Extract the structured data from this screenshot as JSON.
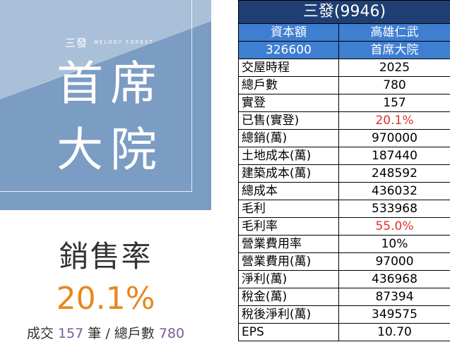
{
  "cover": {
    "brand": "三發",
    "brand_sub": "MELODY FOREST",
    "line1": "首席",
    "line2": "大院"
  },
  "sales": {
    "label": "銷售率",
    "percent": "20.1%",
    "sold_prefix": "成交",
    "sold": "157",
    "sold_unit": "筆",
    "sep": "/",
    "total_label": "總戶數",
    "total": "780"
  },
  "table": {
    "title": "三發(9946)",
    "header": [
      [
        "資本額",
        "高雄仁武"
      ],
      [
        "326600",
        "首席大院"
      ]
    ],
    "rows": [
      {
        "label": "交屋時程",
        "value": "2025"
      },
      {
        "label": "總戶數",
        "value": "780"
      },
      {
        "label": "實登",
        "value": "157"
      },
      {
        "label": "已售(實登)",
        "value": "20.1%"
      },
      {
        "label": "總銷(萬)",
        "value": "970000"
      },
      {
        "label": "土地成本(萬)",
        "value": "187440"
      },
      {
        "label": "建築成本(萬)",
        "value": "248592"
      },
      {
        "label": "總成本",
        "value": "436032"
      },
      {
        "label": "毛利",
        "value": "533968"
      },
      {
        "label": "毛利率",
        "value": "55.0%"
      },
      {
        "label": "營業費用率",
        "value": "10%"
      },
      {
        "label": "營業費用(萬)",
        "value": "97000"
      },
      {
        "label": "淨利(萬)",
        "value": "436968"
      },
      {
        "label": "稅金(萬)",
        "value": "87394"
      },
      {
        "label": "稅後淨利(萬)",
        "value": "349575"
      },
      {
        "label": "EPS",
        "value": "10.70"
      }
    ]
  },
  "colors": {
    "title_bg": "#1f3e73",
    "header_bg": "#3f7fd1",
    "highlight_red": "#e03030",
    "percent_orange": "#e8871e",
    "count_purple": "#7b5a9a",
    "cover_blue": "#7b9cc3"
  }
}
